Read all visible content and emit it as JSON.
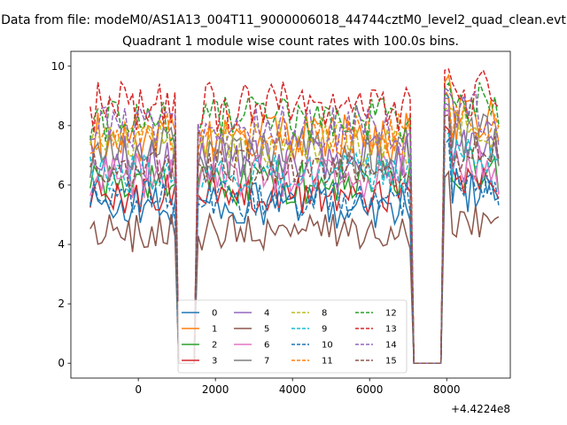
{
  "suptitle": "Data from file: modeM0/AS1A13_004T11_9000006018_44744cztM0_level2_quad_clean.evt",
  "title": "Quadrant 1 module wise count rates with 100.0s bins.",
  "offset_label": "+4.4224e8",
  "xticks": [
    "0",
    "2000",
    "4000",
    "6000",
    "8000"
  ],
  "yticks": [
    "0",
    "2",
    "4",
    "6",
    "8",
    "10"
  ],
  "chart_data": {
    "type": "line",
    "title": "Quadrant 1 module wise count rates with 100.0s bins.",
    "x_offset": 442240000,
    "xlim": [
      -1750,
      9650
    ],
    "ylim": [
      -0.5,
      10.5
    ],
    "grid": false,
    "legend_loc": "lower center",
    "legend_ncol": 4,
    "gap1": [
      1000,
      1500
    ],
    "gap2": [
      7050,
      7900
    ],
    "series": [
      {
        "name": "0",
        "color": "#1f77b4",
        "dash": false,
        "level": 5.3,
        "amp": 0.35,
        "peak": 9.0
      },
      {
        "name": "1",
        "color": "#ff7f0e",
        "dash": false,
        "level": 7.6,
        "amp": 0.4,
        "peak": 9.6
      },
      {
        "name": "2",
        "color": "#2ca02c",
        "dash": false,
        "level": 6.1,
        "amp": 0.35,
        "peak": 8.6
      },
      {
        "name": "3",
        "color": "#d62728",
        "dash": false,
        "level": 5.7,
        "amp": 0.3,
        "peak": 7.9
      },
      {
        "name": "4",
        "color": "#9467bd",
        "dash": false,
        "level": 6.9,
        "amp": 0.35,
        "peak": 8.8
      },
      {
        "name": "5",
        "color": "#8c564b",
        "dash": false,
        "level": 4.4,
        "amp": 0.3,
        "peak": 6.4
      },
      {
        "name": "6",
        "color": "#e377c2",
        "dash": false,
        "level": 6.3,
        "amp": 0.35,
        "peak": 8.5
      },
      {
        "name": "7",
        "color": "#7f7f7f",
        "dash": false,
        "level": 7.1,
        "amp": 0.4,
        "peak": 8.9
      },
      {
        "name": "8",
        "color": "#bcbd22",
        "dash": true,
        "level": 7.4,
        "amp": 0.35,
        "peak": 8.7
      },
      {
        "name": "9",
        "color": "#17becf",
        "dash": true,
        "level": 6.4,
        "amp": 0.3,
        "peak": 7.8
      },
      {
        "name": "10",
        "color": "#1f77b4",
        "dash": true,
        "level": 5.5,
        "amp": 0.3,
        "peak": 7.5
      },
      {
        "name": "11",
        "color": "#ff7f0e",
        "dash": true,
        "level": 7.7,
        "amp": 0.35,
        "peak": 9.1
      },
      {
        "name": "12",
        "color": "#2ca02c",
        "dash": true,
        "level": 8.2,
        "amp": 0.35,
        "peak": 9.3
      },
      {
        "name": "13",
        "color": "#d62728",
        "dash": true,
        "level": 8.6,
        "amp": 0.4,
        "peak": 9.8
      },
      {
        "name": "14",
        "color": "#9467bd",
        "dash": true,
        "level": 7.9,
        "amp": 0.35,
        "peak": 9.2
      },
      {
        "name": "15",
        "color": "#8c564b",
        "dash": true,
        "level": 6.6,
        "amp": 0.3,
        "peak": 8.4
      }
    ]
  }
}
